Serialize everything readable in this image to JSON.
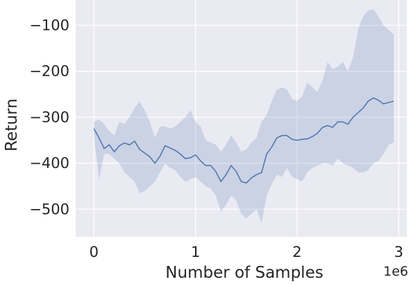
{
  "chart_data": {
    "type": "line",
    "title": "",
    "xlabel": "Number of Samples",
    "ylabel": "Return",
    "x_offset_label": "1e6",
    "xlim": [
      -0.18,
      3.08
    ],
    "ylim": [
      -560,
      -45
    ],
    "xticks": [
      0,
      1,
      2,
      3
    ],
    "xtick_labels": [
      "0",
      "1",
      "2",
      "3"
    ],
    "yticks": [
      -500,
      -400,
      -300,
      -200,
      -100
    ],
    "ytick_labels": [
      "−500",
      "−400",
      "−300",
      "−200",
      "−100"
    ],
    "grid": true,
    "background_color": "#eaeaf2",
    "grid_color": "#ffffff",
    "line_color": "#4c72b0",
    "band_color": "#4c72b0",
    "series": [
      {
        "x": [
          0,
          0.05,
          0.1,
          0.15,
          0.2,
          0.25,
          0.3,
          0.35,
          0.4,
          0.45,
          0.5,
          0.55,
          0.6,
          0.65,
          0.7,
          0.75,
          0.8,
          0.85,
          0.9,
          0.95,
          1.0,
          1.05,
          1.1,
          1.15,
          1.2,
          1.25,
          1.3,
          1.35,
          1.4,
          1.45,
          1.5,
          1.55,
          1.6,
          1.65,
          1.7,
          1.75,
          1.8,
          1.85,
          1.9,
          1.95,
          2.0,
          2.05,
          2.1,
          2.15,
          2.2,
          2.25,
          2.3,
          2.35,
          2.4,
          2.45,
          2.5,
          2.55,
          2.6,
          2.65,
          2.7,
          2.75,
          2.8,
          2.85,
          2.9,
          2.95
        ],
        "mean": [
          -325,
          -345,
          -368,
          -360,
          -375,
          -362,
          -356,
          -360,
          -352,
          -370,
          -378,
          -386,
          -400,
          -385,
          -362,
          -367,
          -372,
          -380,
          -390,
          -388,
          -382,
          -395,
          -405,
          -405,
          -418,
          -440,
          -425,
          -405,
          -418,
          -440,
          -443,
          -432,
          -425,
          -420,
          -380,
          -365,
          -345,
          -340,
          -340,
          -348,
          -350,
          -348,
          -347,
          -342,
          -335,
          -322,
          -318,
          -322,
          -310,
          -310,
          -315,
          -300,
          -290,
          -280,
          -265,
          -258,
          -263,
          -271,
          -268,
          -265
        ],
        "upper": [
          -310,
          -305,
          -315,
          -330,
          -340,
          -310,
          -315,
          -300,
          -280,
          -265,
          -285,
          -310,
          -345,
          -320,
          -320,
          -325,
          -320,
          -310,
          -300,
          -285,
          -310,
          -320,
          -350,
          -355,
          -360,
          -375,
          -360,
          -340,
          -355,
          -375,
          -370,
          -355,
          -345,
          -310,
          -295,
          -265,
          -240,
          -235,
          -240,
          -260,
          -265,
          -255,
          -225,
          -235,
          -245,
          -220,
          -180,
          -195,
          -190,
          -180,
          -200,
          -170,
          -110,
          -80,
          -68,
          -65,
          -80,
          -100,
          -110,
          -120
        ],
        "lower": [
          -340,
          -435,
          -380,
          -380,
          -390,
          -400,
          -420,
          -430,
          -440,
          -465,
          -460,
          -450,
          -440,
          -420,
          -400,
          -410,
          -415,
          -430,
          -440,
          -435,
          -430,
          -440,
          -450,
          -455,
          -470,
          -505,
          -490,
          -470,
          -480,
          -510,
          -520,
          -510,
          -500,
          -530,
          -470,
          -445,
          -425,
          -430,
          -410,
          -430,
          -435,
          -440,
          -420,
          -410,
          -405,
          -400,
          -400,
          -405,
          -390,
          -400,
          -405,
          -410,
          -420,
          -420,
          -415,
          -400,
          -395,
          -380,
          -360,
          -355
        ]
      }
    ]
  }
}
